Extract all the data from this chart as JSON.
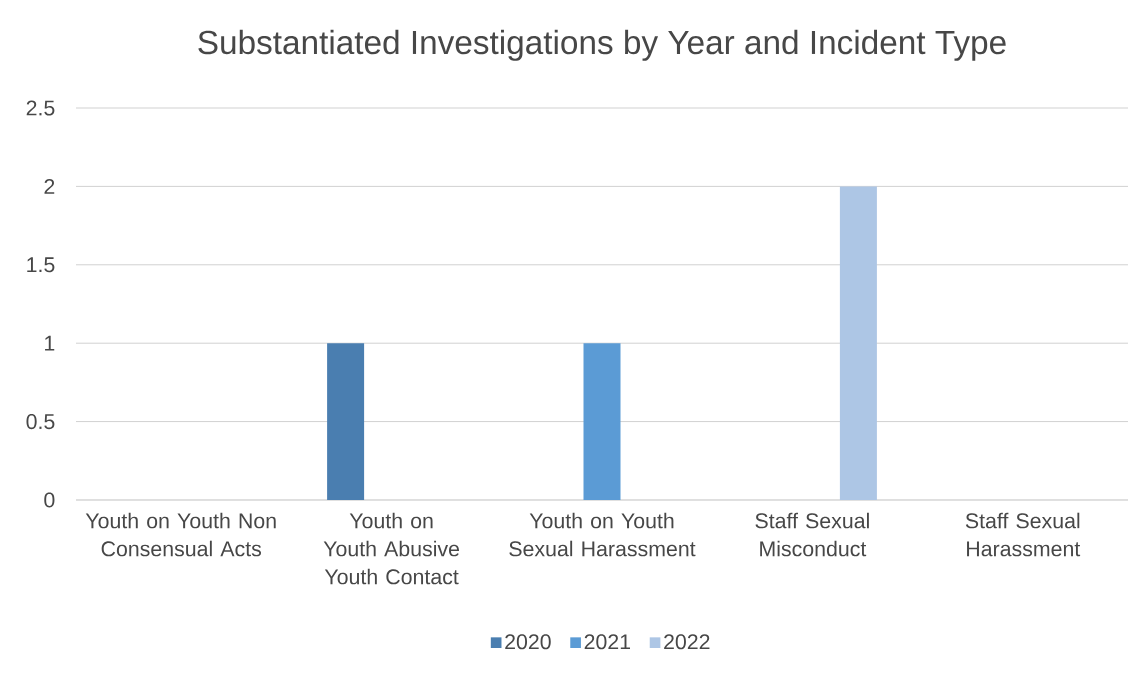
{
  "chart_data": {
    "type": "bar",
    "title": "Substantiated Investigations by Year and Incident Type",
    "categories": [
      "Youth on Youth Non Consensual Acts",
      "Youth on Youth Abusive Youth Contact",
      "Youth on Youth Sexual Harassment",
      "Staff Sexual Misconduct",
      "Staff Sexual Harassment"
    ],
    "series": [
      {
        "name": "2020",
        "color": "#4a7eb0",
        "values": [
          0,
          1,
          0,
          0,
          0
        ]
      },
      {
        "name": "2021",
        "color": "#5b9bd5",
        "values": [
          0,
          0,
          1,
          0,
          0
        ]
      },
      {
        "name": "2022",
        "color": "#adc6e5",
        "values": [
          0,
          0,
          0,
          2,
          0
        ]
      }
    ],
    "ylim": [
      0,
      2.5
    ],
    "yticks": [
      0,
      0.5,
      1,
      1.5,
      2,
      2.5
    ],
    "grid": "y",
    "legend": "bottom"
  }
}
